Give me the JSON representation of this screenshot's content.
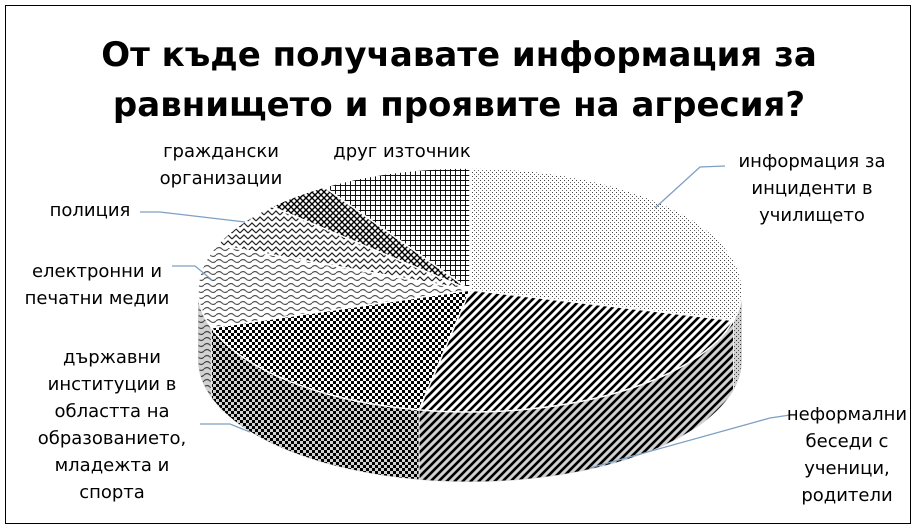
{
  "chart_data": {
    "type": "pie",
    "title": "От къде получавате информация за равнището и проявите на агресия?",
    "title_lines": [
      "От къде получавате информация за",
      "равнището и проявите на агресия?"
    ],
    "slices": [
      {
        "label": "информация за инциденти в училището",
        "label_lines": [
          "информация за",
          "инциденти в",
          "училището"
        ],
        "value": 29,
        "pattern": "dots"
      },
      {
        "label": "неформални беседи с ученици, родители",
        "label_lines": [
          "неформални",
          "беседи с",
          "ученици,",
          "родители"
        ],
        "value": 24,
        "pattern": "diag"
      },
      {
        "label": "държавни институции в областта на образованието, младежта и спорта",
        "label_lines": [
          "държавни",
          "институции в",
          "областта на",
          "образованието,",
          "младежта и",
          "спорта"
        ],
        "value": 17,
        "pattern": "checker"
      },
      {
        "label": "електронни и печатни медии",
        "label_lines": [
          "електронни и",
          "печатни медии"
        ],
        "value": 11,
        "pattern": "wave"
      },
      {
        "label": "полиция",
        "label_lines": [
          "полиция"
        ],
        "value": 6,
        "pattern": "zigzag"
      },
      {
        "label": "граждански организации",
        "label_lines": [
          "граждански",
          "организации"
        ],
        "value": 4,
        "pattern": "crossdiag"
      },
      {
        "label": "друг източник",
        "label_lines": [
          "друг източник"
        ],
        "value": 9,
        "pattern": "grid"
      }
    ],
    "style": "3d-pie, black-and-white patterns",
    "legend": "none (callout labels)"
  }
}
